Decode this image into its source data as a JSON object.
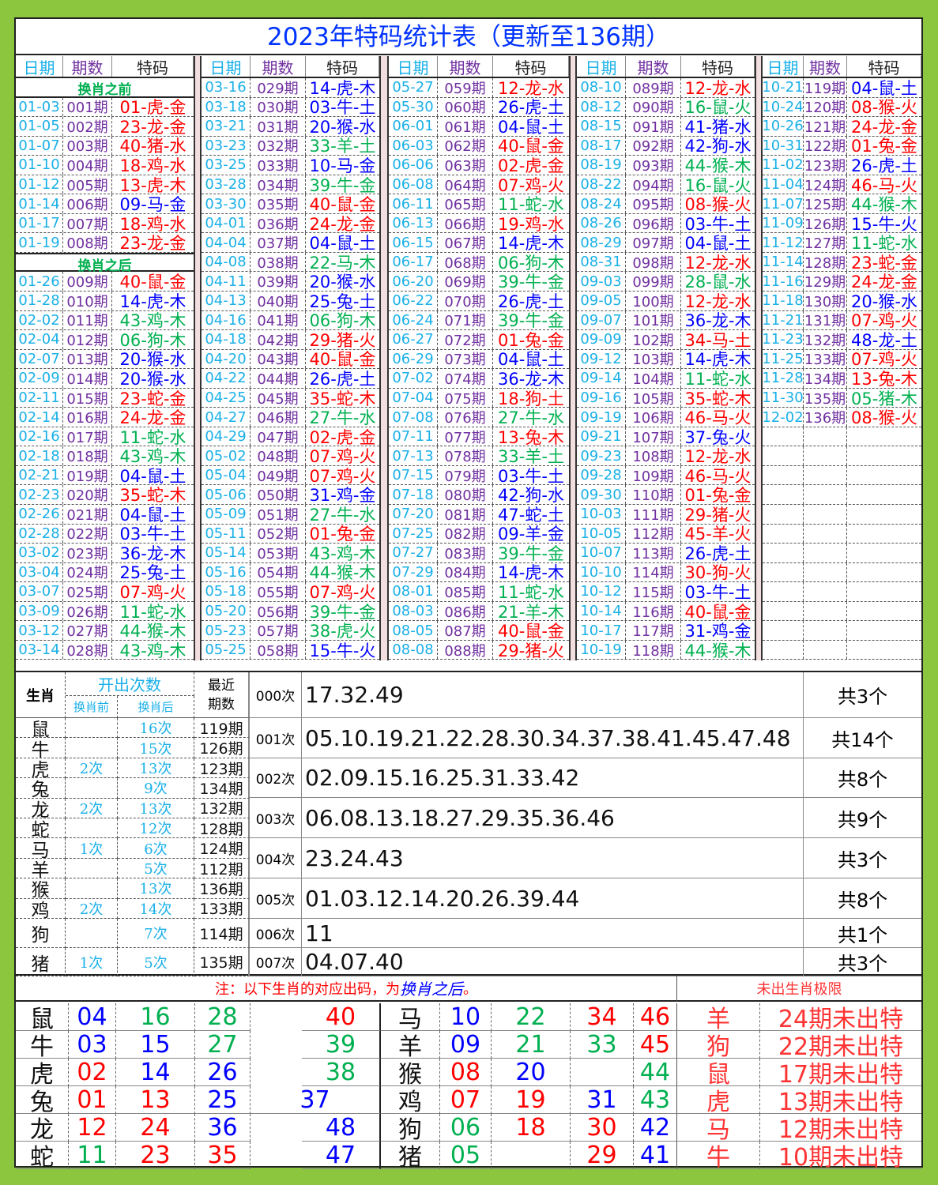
{
  "title": "2023年特码统计表（更新至136期）",
  "colors": {
    "date": "#1ab0e8",
    "period": "#7030a0",
    "red": "#ff0000",
    "blue": "#0000ff",
    "green": "#00b050",
    "border": "#8cc63f"
  },
  "wave": {
    "red": [
      "01",
      "02",
      "07",
      "08",
      "12",
      "13",
      "18",
      "19",
      "23",
      "24",
      "29",
      "30",
      "34",
      "35",
      "40",
      "45",
      "46"
    ],
    "blue": [
      "03",
      "04",
      "09",
      "10",
      "14",
      "15",
      "20",
      "25",
      "26",
      "31",
      "36",
      "37",
      "41",
      "42",
      "47",
      "48"
    ],
    "green": [
      "05",
      "06",
      "11",
      "16",
      "17",
      "21",
      "22",
      "27",
      "28",
      "32",
      "33",
      "38",
      "39",
      "43",
      "44",
      "49"
    ]
  },
  "headers": [
    "日期",
    "期数",
    "特码"
  ],
  "section_before": "换肖之前",
  "section_after": "换肖之后",
  "columns": [
    {
      "before": [
        [
          "01-03",
          "001期",
          "01-虎-金"
        ],
        [
          "01-05",
          "002期",
          "23-龙-金"
        ],
        [
          "01-07",
          "003期",
          "40-猪-水"
        ],
        [
          "01-10",
          "004期",
          "18-鸡-水"
        ],
        [
          "01-12",
          "005期",
          "13-虎-木"
        ],
        [
          "01-14",
          "006期",
          "09-马-金"
        ],
        [
          "01-17",
          "007期",
          "18-鸡-水"
        ],
        [
          "01-19",
          "008期",
          "23-龙-金"
        ]
      ],
      "rows": [
        [
          "01-26",
          "009期",
          "40-鼠-金"
        ],
        [
          "01-28",
          "010期",
          "14-虎-木"
        ],
        [
          "02-02",
          "011期",
          "43-鸡-木"
        ],
        [
          "02-04",
          "012期",
          "06-狗-木"
        ],
        [
          "02-07",
          "013期",
          "20-猴-水"
        ],
        [
          "02-09",
          "014期",
          "20-猴-水"
        ],
        [
          "02-11",
          "015期",
          "23-蛇-金"
        ],
        [
          "02-14",
          "016期",
          "24-龙-金"
        ],
        [
          "02-16",
          "017期",
          "11-蛇-水"
        ],
        [
          "02-18",
          "018期",
          "43-鸡-木"
        ],
        [
          "02-21",
          "019期",
          "04-鼠-土"
        ],
        [
          "02-23",
          "020期",
          "35-蛇-木"
        ],
        [
          "02-26",
          "021期",
          "04-鼠-土"
        ],
        [
          "02-28",
          "022期",
          "03-牛-土"
        ],
        [
          "03-02",
          "023期",
          "36-龙-木"
        ],
        [
          "03-04",
          "024期",
          "25-兔-土"
        ],
        [
          "03-07",
          "025期",
          "07-鸡-火"
        ],
        [
          "03-09",
          "026期",
          "11-蛇-水"
        ],
        [
          "03-12",
          "027期",
          "44-猴-木"
        ],
        [
          "03-14",
          "028期",
          "43-鸡-木"
        ]
      ]
    },
    {
      "rows": [
        [
          "03-16",
          "029期",
          "14-虎-木"
        ],
        [
          "03-18",
          "030期",
          "03-牛-土"
        ],
        [
          "03-21",
          "031期",
          "20-猴-水"
        ],
        [
          "03-23",
          "032期",
          "33-羊-土"
        ],
        [
          "03-25",
          "033期",
          "10-马-金"
        ],
        [
          "03-28",
          "034期",
          "39-牛-金"
        ],
        [
          "03-30",
          "035期",
          "40-鼠-金"
        ],
        [
          "04-01",
          "036期",
          "24-龙-金"
        ],
        [
          "04-04",
          "037期",
          "04-鼠-土"
        ],
        [
          "04-08",
          "038期",
          "22-马-木"
        ],
        [
          "04-11",
          "039期",
          "20-猴-水"
        ],
        [
          "04-13",
          "040期",
          "25-兔-土"
        ],
        [
          "04-16",
          "041期",
          "06-狗-木"
        ],
        [
          "04-18",
          "042期",
          "29-猪-火"
        ],
        [
          "04-20",
          "043期",
          "40-鼠-金"
        ],
        [
          "04-22",
          "044期",
          "26-虎-土"
        ],
        [
          "04-25",
          "045期",
          "35-蛇-木"
        ],
        [
          "04-27",
          "046期",
          "27-牛-水"
        ],
        [
          "04-29",
          "047期",
          "02-虎-金"
        ],
        [
          "05-02",
          "048期",
          "07-鸡-火"
        ],
        [
          "05-04",
          "049期",
          "07-鸡-火"
        ],
        [
          "05-06",
          "050期",
          "31-鸡-金"
        ],
        [
          "05-09",
          "051期",
          "27-牛-水"
        ],
        [
          "05-11",
          "052期",
          "01-兔-金"
        ],
        [
          "05-14",
          "053期",
          "43-鸡-木"
        ],
        [
          "05-16",
          "054期",
          "44-猴-木"
        ],
        [
          "05-18",
          "055期",
          "07-鸡-火"
        ],
        [
          "05-20",
          "056期",
          "39-牛-金"
        ],
        [
          "05-23",
          "057期",
          "38-虎-火"
        ],
        [
          "05-25",
          "058期",
          "15-牛-火"
        ]
      ]
    },
    {
      "rows": [
        [
          "05-27",
          "059期",
          "12-龙-水"
        ],
        [
          "05-30",
          "060期",
          "26-虎-土"
        ],
        [
          "06-01",
          "061期",
          "04-鼠-土"
        ],
        [
          "06-03",
          "062期",
          "40-鼠-金"
        ],
        [
          "06-06",
          "063期",
          "02-虎-金"
        ],
        [
          "06-08",
          "064期",
          "07-鸡-火"
        ],
        [
          "06-11",
          "065期",
          "11-蛇-水"
        ],
        [
          "06-13",
          "066期",
          "19-鸡-水"
        ],
        [
          "06-15",
          "067期",
          "14-虎-木"
        ],
        [
          "06-17",
          "068期",
          "06-狗-木"
        ],
        [
          "06-20",
          "069期",
          "39-牛-金"
        ],
        [
          "06-22",
          "070期",
          "26-虎-土"
        ],
        [
          "06-24",
          "071期",
          "39-牛-金"
        ],
        [
          "06-27",
          "072期",
          "01-兔-金"
        ],
        [
          "06-29",
          "073期",
          "04-鼠-土"
        ],
        [
          "07-02",
          "074期",
          "36-龙-木"
        ],
        [
          "07-04",
          "075期",
          "18-狗-土"
        ],
        [
          "07-08",
          "076期",
          "27-牛-水"
        ],
        [
          "07-11",
          "077期",
          "13-兔-木"
        ],
        [
          "07-13",
          "078期",
          "33-羊-土"
        ],
        [
          "07-15",
          "079期",
          "03-牛-土"
        ],
        [
          "07-18",
          "080期",
          "42-狗-水"
        ],
        [
          "07-20",
          "081期",
          "47-蛇-土"
        ],
        [
          "07-25",
          "082期",
          "09-羊-金"
        ],
        [
          "07-27",
          "083期",
          "39-牛-金"
        ],
        [
          "07-29",
          "084期",
          "14-虎-木"
        ],
        [
          "08-01",
          "085期",
          "11-蛇-水"
        ],
        [
          "08-03",
          "086期",
          "21-羊-木"
        ],
        [
          "08-05",
          "087期",
          "40-鼠-金"
        ],
        [
          "08-08",
          "088期",
          "29-猪-火"
        ]
      ]
    },
    {
      "rows": [
        [
          "08-10",
          "089期",
          "12-龙-水"
        ],
        [
          "08-12",
          "090期",
          "16-鼠-火"
        ],
        [
          "08-15",
          "091期",
          "41-猪-水"
        ],
        [
          "08-17",
          "092期",
          "42-狗-水"
        ],
        [
          "08-19",
          "093期",
          "44-猴-木"
        ],
        [
          "08-22",
          "094期",
          "16-鼠-火"
        ],
        [
          "08-24",
          "095期",
          "08-猴-火"
        ],
        [
          "08-26",
          "096期",
          "03-牛-土"
        ],
        [
          "08-29",
          "097期",
          "04-鼠-土"
        ],
        [
          "08-31",
          "098期",
          "12-龙-水"
        ],
        [
          "09-03",
          "099期",
          "28-鼠-水"
        ],
        [
          "09-05",
          "100期",
          "12-龙-水"
        ],
        [
          "09-07",
          "101期",
          "36-龙-木"
        ],
        [
          "09-09",
          "102期",
          "34-马-土"
        ],
        [
          "09-12",
          "103期",
          "14-虎-木"
        ],
        [
          "09-14",
          "104期",
          "11-蛇-水"
        ],
        [
          "09-16",
          "105期",
          "35-蛇-木"
        ],
        [
          "09-19",
          "106期",
          "46-马-火"
        ],
        [
          "09-21",
          "107期",
          "37-兔-火"
        ],
        [
          "09-23",
          "108期",
          "12-龙-水"
        ],
        [
          "09-28",
          "109期",
          "46-马-火"
        ],
        [
          "09-30",
          "110期",
          "01-兔-金"
        ],
        [
          "10-03",
          "111期",
          "29-猪-火"
        ],
        [
          "10-05",
          "112期",
          "45-羊-火"
        ],
        [
          "10-07",
          "113期",
          "26-虎-土"
        ],
        [
          "10-10",
          "114期",
          "30-狗-火"
        ],
        [
          "10-12",
          "115期",
          "03-牛-土"
        ],
        [
          "10-14",
          "116期",
          "40-鼠-金"
        ],
        [
          "10-17",
          "117期",
          "31-鸡-金"
        ],
        [
          "10-19",
          "118期",
          "44-猴-木"
        ]
      ]
    },
    {
      "rows": [
        [
          "10-21",
          "119期",
          "04-鼠-土"
        ],
        [
          "10-24",
          "120期",
          "08-猴-火"
        ],
        [
          "10-26",
          "121期",
          "24-龙-金"
        ],
        [
          "10-31",
          "122期",
          "01-兔-金"
        ],
        [
          "11-02",
          "123期",
          "26-虎-土"
        ],
        [
          "11-04",
          "124期",
          "46-马-火"
        ],
        [
          "11-07",
          "125期",
          "44-猴-木"
        ],
        [
          "11-09",
          "126期",
          "15-牛-火"
        ],
        [
          "11-12",
          "127期",
          "11-蛇-水"
        ],
        [
          "11-14",
          "128期",
          "23-蛇-金"
        ],
        [
          "11-16",
          "129期",
          "24-龙-金"
        ],
        [
          "11-18",
          "130期",
          "20-猴-水"
        ],
        [
          "11-21",
          "131期",
          "07-鸡-火"
        ],
        [
          "11-23",
          "132期",
          "48-龙-土"
        ],
        [
          "11-25",
          "133期",
          "07-鸡-火"
        ],
        [
          "11-28",
          "134期",
          "13-兔-木"
        ],
        [
          "11-30",
          "135期",
          "05-猪-木"
        ],
        [
          "12-02",
          "136期",
          "08-猴-火"
        ]
      ]
    }
  ],
  "stats": {
    "header": {
      "zodiac": "生肖",
      "count": "开出次数",
      "before": "换肖前",
      "after": "换肖后",
      "recent": "最近期数"
    },
    "rows": [
      [
        "鼠",
        "",
        "16次",
        "119期"
      ],
      [
        "牛",
        "",
        "15次",
        "126期"
      ],
      [
        "虎",
        "2次",
        "13次",
        "123期"
      ],
      [
        "兔",
        "",
        "9次",
        "134期"
      ],
      [
        "龙",
        "2次",
        "13次",
        "132期"
      ],
      [
        "蛇",
        "",
        "12次",
        "128期"
      ],
      [
        "马",
        "1次",
        "6次",
        "124期"
      ],
      [
        "羊",
        "",
        "5次",
        "112期"
      ],
      [
        "猴",
        "",
        "13次",
        "136期"
      ],
      [
        "鸡",
        "2次",
        "14次",
        "133期"
      ],
      [
        "狗",
        "",
        "7次",
        "114期"
      ],
      [
        "猪",
        "1次",
        "5次",
        "135期"
      ]
    ],
    "freq": [
      [
        "000次",
        "17.32.49",
        "共3个"
      ],
      [
        "001次",
        "05.10.19.21.22.28.30.34.37.38.41.45.47.48",
        "共14个"
      ],
      [
        "002次",
        "02.09.15.16.25.31.33.42",
        "共8个"
      ],
      [
        "003次",
        "06.08.13.18.27.29.35.36.46",
        "共9个"
      ],
      [
        "004次",
        "23.24.43",
        "共3个"
      ],
      [
        "005次",
        "01.03.12.14.20.26.39.44",
        "共8个"
      ],
      [
        "006次",
        "11",
        "共1个"
      ],
      [
        "007次",
        "04.07.40",
        "共3个"
      ]
    ]
  },
  "note": {
    "prefix": "注：以下生肖的对应出码，为",
    "emph": "换肖之后",
    "suffix": "。"
  },
  "missing_title": "未出生肖极限",
  "zodiac_numbers_left": [
    [
      "鼠",
      "04",
      "16",
      "28",
      "",
      "40"
    ],
    [
      "牛",
      "03",
      "15",
      "27",
      "",
      "39"
    ],
    [
      "虎",
      "02",
      "14",
      "26",
      "",
      "38"
    ],
    [
      "兔",
      "01",
      "13",
      "25",
      "37",
      ""
    ],
    [
      "龙",
      "12",
      "24",
      "36",
      "",
      "48"
    ],
    [
      "蛇",
      "11",
      "23",
      "35",
      "",
      "47"
    ]
  ],
  "zodiac_numbers_right": [
    [
      "马",
      "10",
      "22",
      "34",
      "46"
    ],
    [
      "羊",
      "09",
      "21",
      "33",
      "45"
    ],
    [
      "猴",
      "08",
      "20",
      "",
      "44"
    ],
    [
      "鸡",
      "07",
      "19",
      "31",
      "43"
    ],
    [
      "狗",
      "06",
      "18",
      "30",
      "42"
    ],
    [
      "猪",
      "05",
      "",
      "29",
      "41"
    ]
  ],
  "missing": [
    [
      "羊",
      "24期未出特"
    ],
    [
      "狗",
      "22期未出特"
    ],
    [
      "鼠",
      "17期未出特"
    ],
    [
      "虎",
      "13期未出特"
    ],
    [
      "马",
      "12期未出特"
    ],
    [
      "牛",
      "10期未出特"
    ]
  ]
}
